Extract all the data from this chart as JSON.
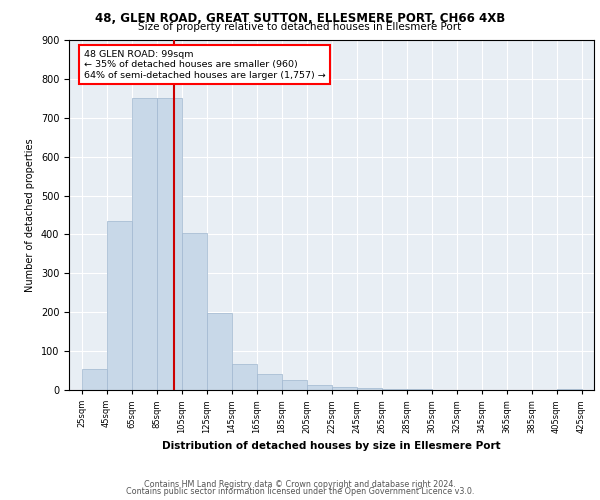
{
  "title1": "48, GLEN ROAD, GREAT SUTTON, ELLESMERE PORT, CH66 4XB",
  "title2": "Size of property relative to detached houses in Ellesmere Port",
  "xlabel": "Distribution of detached houses by size in Ellesmere Port",
  "ylabel": "Number of detached properties",
  "footer1": "Contains HM Land Registry data © Crown copyright and database right 2024.",
  "footer2": "Contains public sector information licensed under the Open Government Licence v3.0.",
  "annotation_line1": "48 GLEN ROAD: 99sqm",
  "annotation_line2": "← 35% of detached houses are smaller (960)",
  "annotation_line3": "64% of semi-detached houses are larger (1,757) →",
  "property_sqm": 99,
  "bar_color": "#c8d8e8",
  "bar_edge_color": "#a0b8d0",
  "red_line_color": "#cc0000",
  "background_color": "#e8eef4",
  "grid_color": "#ffffff",
  "ylim": [
    0,
    900
  ],
  "yticks": [
    0,
    100,
    200,
    300,
    400,
    500,
    600,
    700,
    800,
    900
  ],
  "bin_edges": [
    25,
    45,
    65,
    85,
    105,
    125,
    145,
    165,
    185,
    205,
    225,
    245,
    265,
    285,
    305,
    325,
    345,
    365,
    385,
    405,
    425
  ],
  "bin_labels": [
    "25sqm",
    "45sqm",
    "65sqm",
    "85sqm",
    "105sqm",
    "125sqm",
    "145sqm",
    "165sqm",
    "185sqm",
    "205sqm",
    "225sqm",
    "245sqm",
    "265sqm",
    "285sqm",
    "305sqm",
    "325sqm",
    "345sqm",
    "365sqm",
    "385sqm",
    "405sqm",
    "425sqm"
  ],
  "bar_heights": [
    55,
    435,
    750,
    750,
    405,
    197,
    68,
    42,
    25,
    14,
    8,
    5,
    3,
    2,
    1,
    0,
    0,
    0,
    0,
    2
  ]
}
